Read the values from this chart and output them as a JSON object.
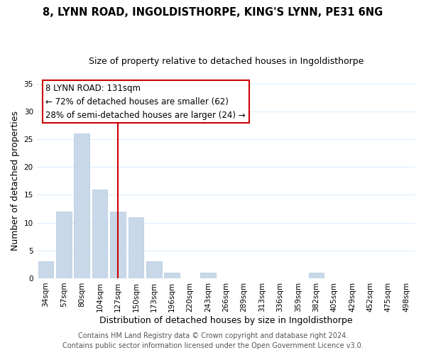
{
  "title": "8, LYNN ROAD, INGOLDISTHORPE, KING'S LYNN, PE31 6NG",
  "subtitle": "Size of property relative to detached houses in Ingoldisthorpe",
  "xlabel": "Distribution of detached houses by size in Ingoldisthorpe",
  "ylabel": "Number of detached properties",
  "bar_labels": [
    "34sqm",
    "57sqm",
    "80sqm",
    "104sqm",
    "127sqm",
    "150sqm",
    "173sqm",
    "196sqm",
    "220sqm",
    "243sqm",
    "266sqm",
    "289sqm",
    "313sqm",
    "336sqm",
    "359sqm",
    "382sqm",
    "405sqm",
    "429sqm",
    "452sqm",
    "475sqm",
    "498sqm"
  ],
  "bar_values": [
    3,
    12,
    26,
    16,
    12,
    11,
    3,
    1,
    0,
    1,
    0,
    0,
    0,
    0,
    0,
    1,
    0,
    0,
    0,
    0,
    0
  ],
  "bar_color": "#c8d8e8",
  "bar_edge_color": "#b0c8e0",
  "vline_x": 4,
  "vline_color": "#cc0000",
  "ylim": [
    0,
    35
  ],
  "yticks": [
    0,
    5,
    10,
    15,
    20,
    25,
    30,
    35
  ],
  "annotation_line1": "8 LYNN ROAD: 131sqm",
  "annotation_line2": "← 72% of detached houses are smaller (62)",
  "annotation_line3": "28% of semi-detached houses are larger (24) →",
  "footer_line1": "Contains HM Land Registry data © Crown copyright and database right 2024.",
  "footer_line2": "Contains public sector information licensed under the Open Government Licence v3.0.",
  "title_fontsize": 10.5,
  "subtitle_fontsize": 9,
  "axis_label_fontsize": 9,
  "tick_fontsize": 7.5,
  "annotation_fontsize": 8.5,
  "footer_fontsize": 7,
  "grid_color": "#ddeeff"
}
